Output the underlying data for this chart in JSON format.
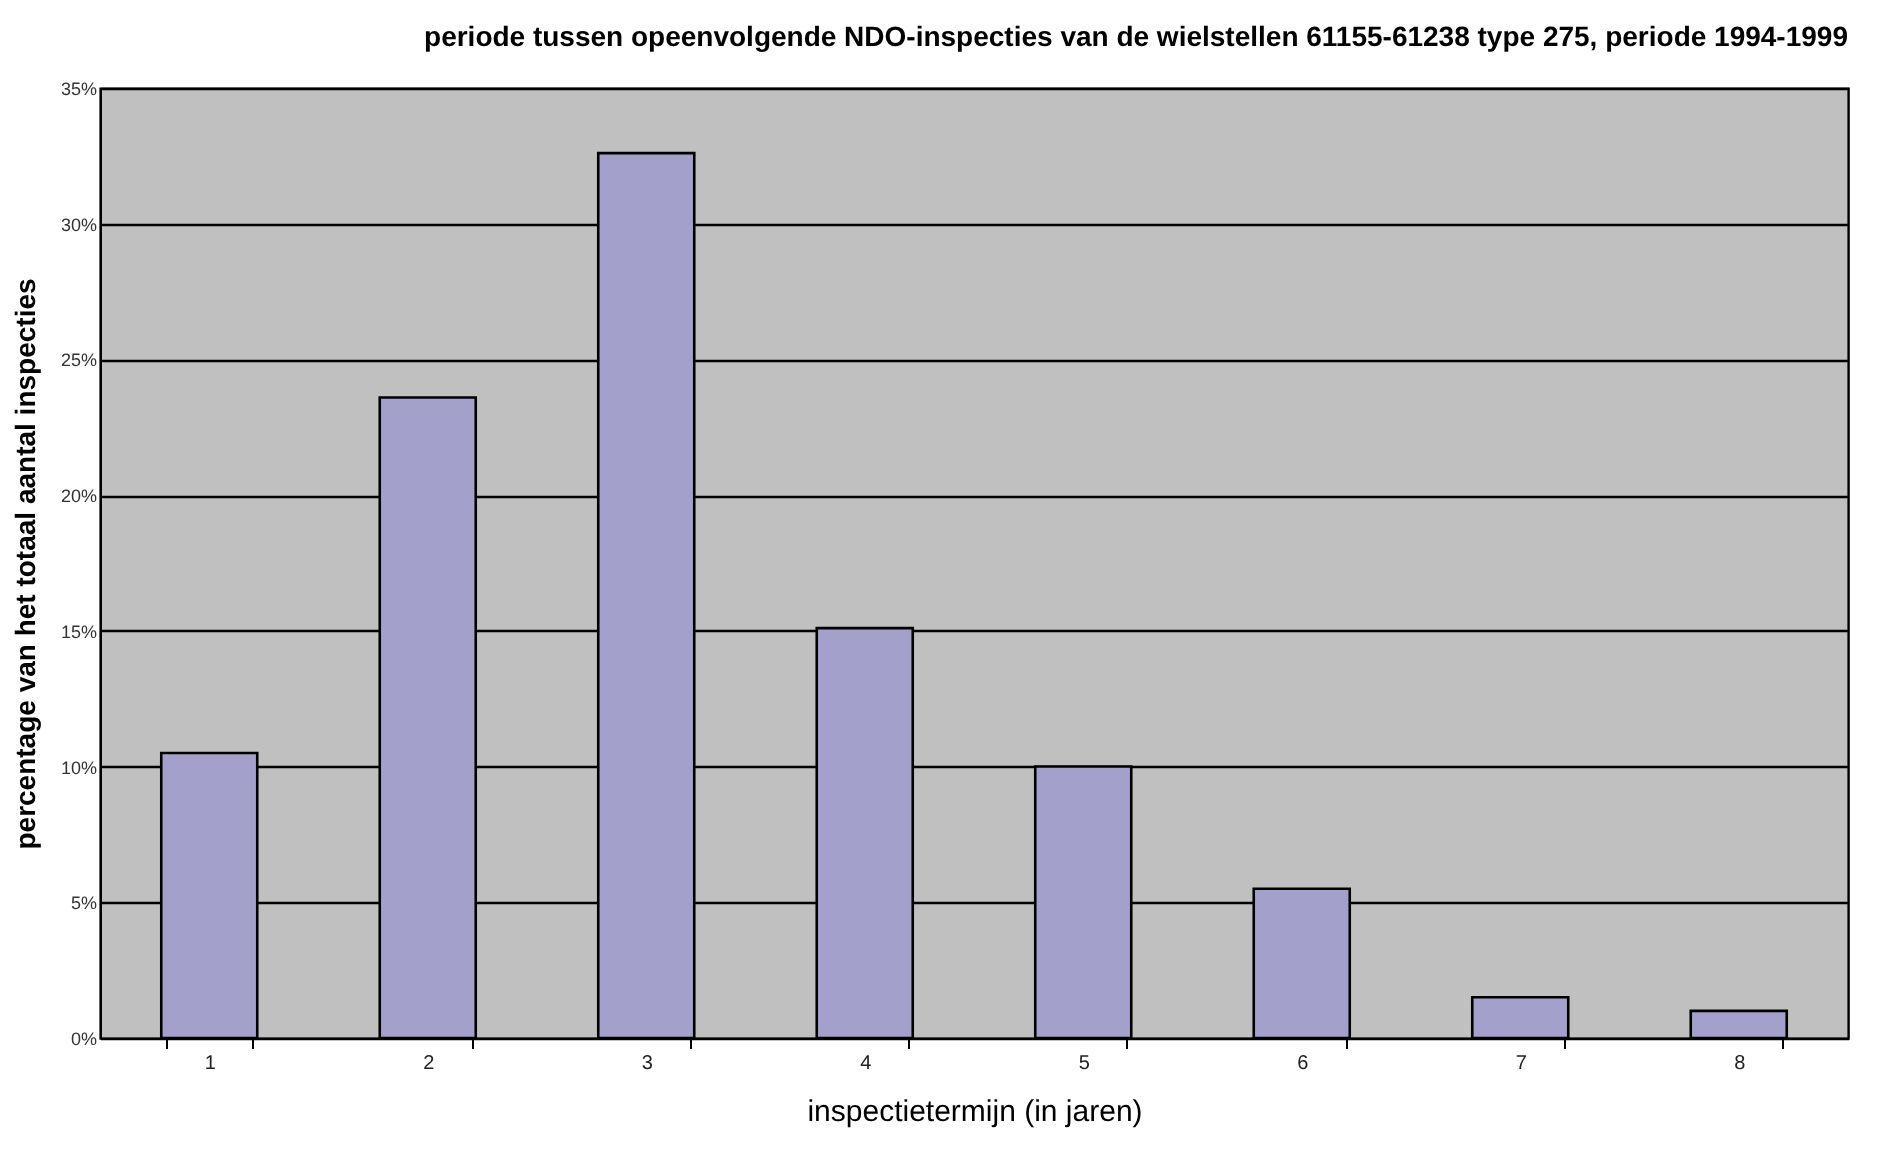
{
  "chart_data": {
    "type": "bar",
    "title": "periode tussen opeenvolgende NDO-inspecties van de wielstellen 61155-61238 type 275, periode 1994-1999",
    "xlabel": "inspectietermijn (in jaren)",
    "ylabel": "percentage van het totaal aantal inspecties",
    "categories": [
      "1",
      "2",
      "3",
      "4",
      "5",
      "6",
      "7",
      "8"
    ],
    "values": [
      10.5,
      23.6,
      32.6,
      15.1,
      10.0,
      5.5,
      1.5,
      1.0
    ],
    "color": "#a3a1cb",
    "ylim": [
      0,
      35
    ],
    "yticks": [
      {
        "value": 0,
        "label": "0%"
      },
      {
        "value": 5,
        "label": "5%"
      },
      {
        "value": 10,
        "label": "10%"
      },
      {
        "value": 15,
        "label": "15%"
      },
      {
        "value": 20,
        "label": "20%"
      },
      {
        "value": 25,
        "label": "25%"
      },
      {
        "value": 30,
        "label": "30%"
      },
      {
        "value": 35,
        "label": "35%"
      }
    ],
    "grid": "y"
  }
}
